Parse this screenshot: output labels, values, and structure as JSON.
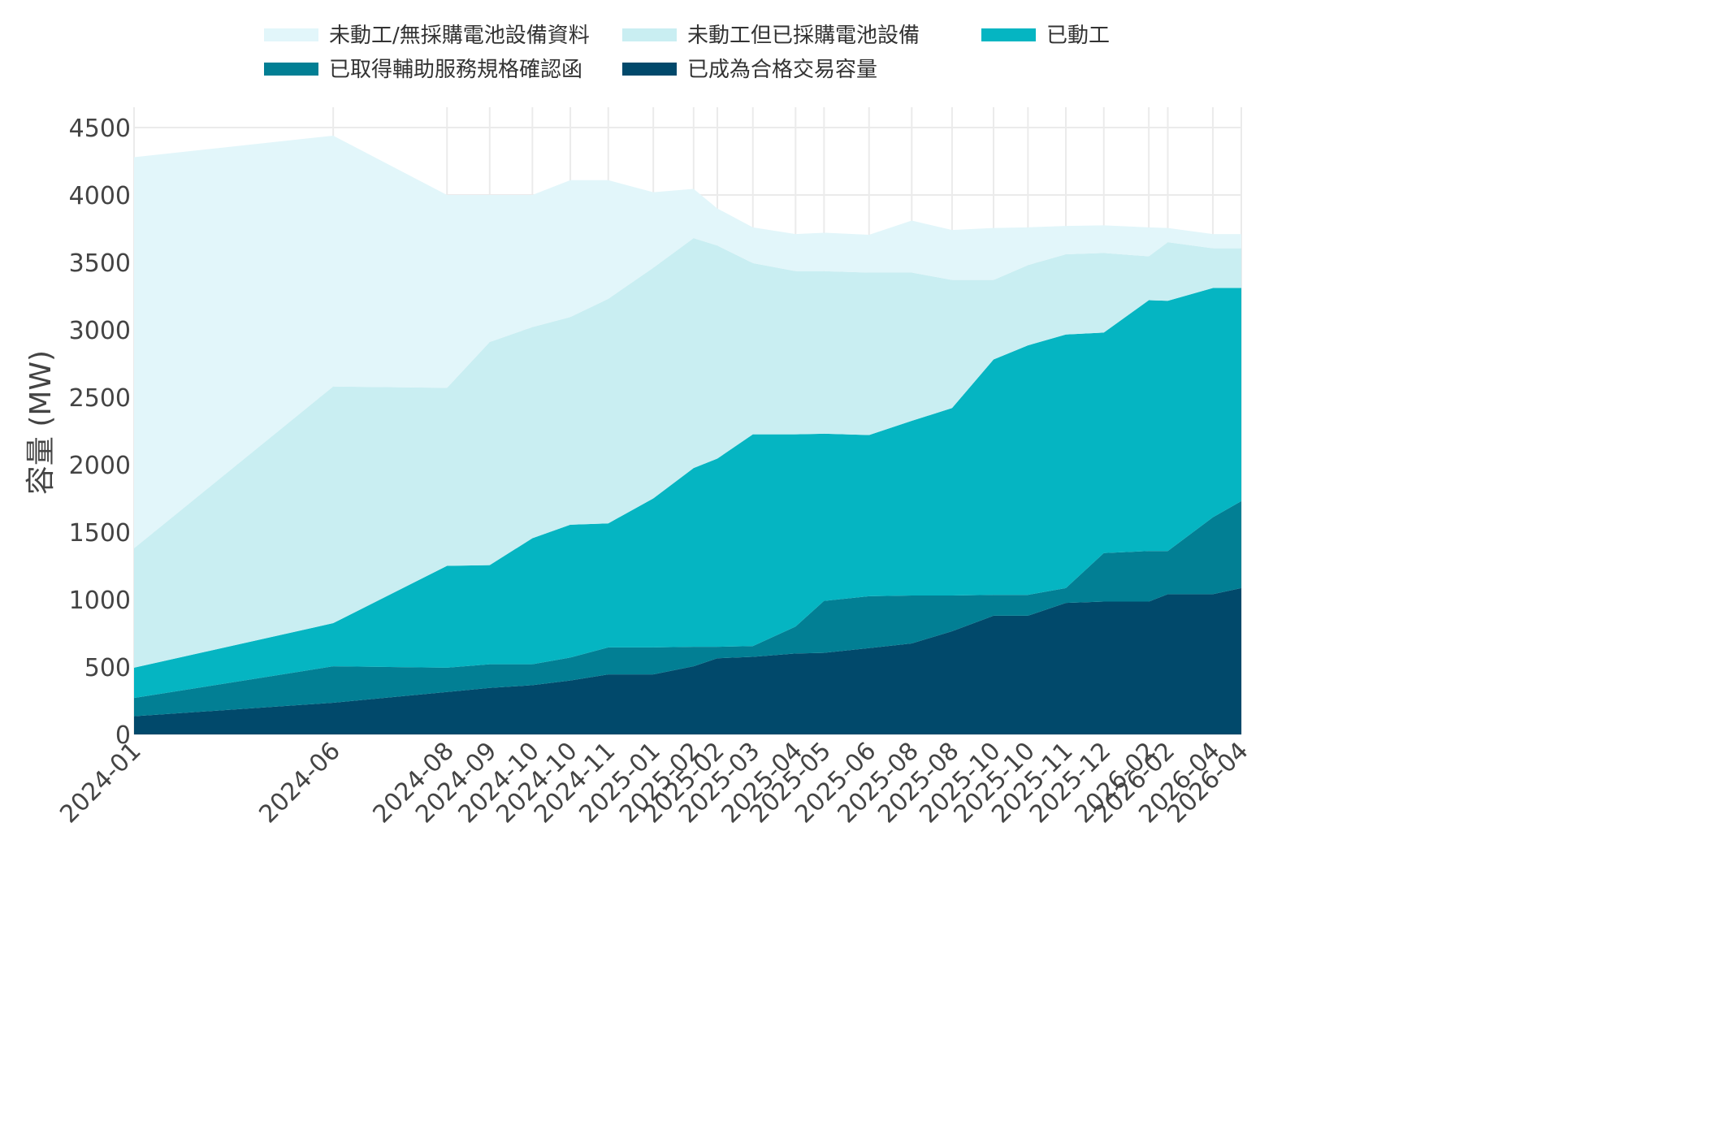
{
  "chart_data": {
    "type": "area",
    "stacked": true,
    "ylabel": "容量 (MW)",
    "xlabel": "",
    "ylim": [
      0,
      4500
    ],
    "yticks": [
      0,
      500,
      1000,
      1500,
      2000,
      2500,
      3000,
      3500,
      4000,
      4500
    ],
    "grid": true,
    "legend_position": "top",
    "x": [
      "2024-01",
      "2024-06",
      "2024-08",
      "2024-09",
      "2024-10",
      "2024-10",
      "2024-11",
      "2025-01",
      "2025-02",
      "2025-02",
      "2025-03",
      "2025-04",
      "2025-05",
      "2025-06",
      "2025-08",
      "2025-08",
      "2025-10",
      "2025-10",
      "2025-11",
      "2025-12",
      "2026-02",
      "2026-02",
      "2026-04",
      "2026-04"
    ],
    "x_pos": [
      0,
      4,
      6,
      7,
      8,
      9,
      10,
      11,
      12,
      13,
      14,
      15,
      16,
      17,
      18,
      19,
      20,
      21,
      22,
      23,
      24,
      25,
      26,
      27
    ],
    "x_scale": [
      0,
      10.08,
      15.84,
      18.0,
      20.16,
      22.08,
      24.0,
      26.28,
      28.32,
      29.52,
      31.32,
      33.48,
      34.92,
      37.2,
      39.36,
      41.4,
      43.5,
      45.24,
      47.16,
      49.08,
      51.36,
      52.32,
      54.6,
      56.04
    ],
    "series": [
      {
        "name": "已成為合格交易容量",
        "color": "#01496b",
        "values": [
          135,
          235,
          315,
          345,
          365,
          400,
          445,
          445,
          505,
          565,
          575,
          600,
          605,
          640,
          675,
          765,
          880,
          880,
          975,
          985,
          985,
          1040,
          1040,
          1085
        ]
      },
      {
        "name": "已取得輔助服務規格確認函",
        "color": "#027f94",
        "values": [
          135,
          270,
          180,
          175,
          155,
          170,
          200,
          200,
          145,
          85,
          80,
          200,
          385,
          385,
          355,
          265,
          155,
          155,
          110,
          360,
          375,
          320,
          570,
          645
        ]
      },
      {
        "name": "已動工",
        "color": "#05b5c2",
        "values": [
          225,
          320,
          755,
          735,
          935,
          985,
          920,
          1105,
          1325,
          1395,
          1570,
          1425,
          1240,
          1195,
          1295,
          1390,
          1745,
          1850,
          1880,
          1635,
          1860,
          1855,
          1700,
          1580
        ]
      },
      {
        "name": "未動工但已採購電池設備",
        "color": "#c9eef2",
        "values": [
          885,
          1755,
          1320,
          1655,
          1565,
          1540,
          1665,
          1710,
          1705,
          1580,
          1270,
          1210,
          1205,
          1205,
          1100,
          950,
          590,
          595,
          595,
          590,
          325,
          435,
          295,
          295
        ]
      },
      {
        "name": "未動工/無採購電池設備資料",
        "color": "#e2f6fa",
        "values": [
          2900,
          1860,
          1430,
          1090,
          980,
          1015,
          880,
          560,
          365,
          275,
          265,
          275,
          285,
          280,
          385,
          370,
          385,
          280,
          210,
          205,
          215,
          105,
          105,
          105
        ]
      }
    ]
  }
}
